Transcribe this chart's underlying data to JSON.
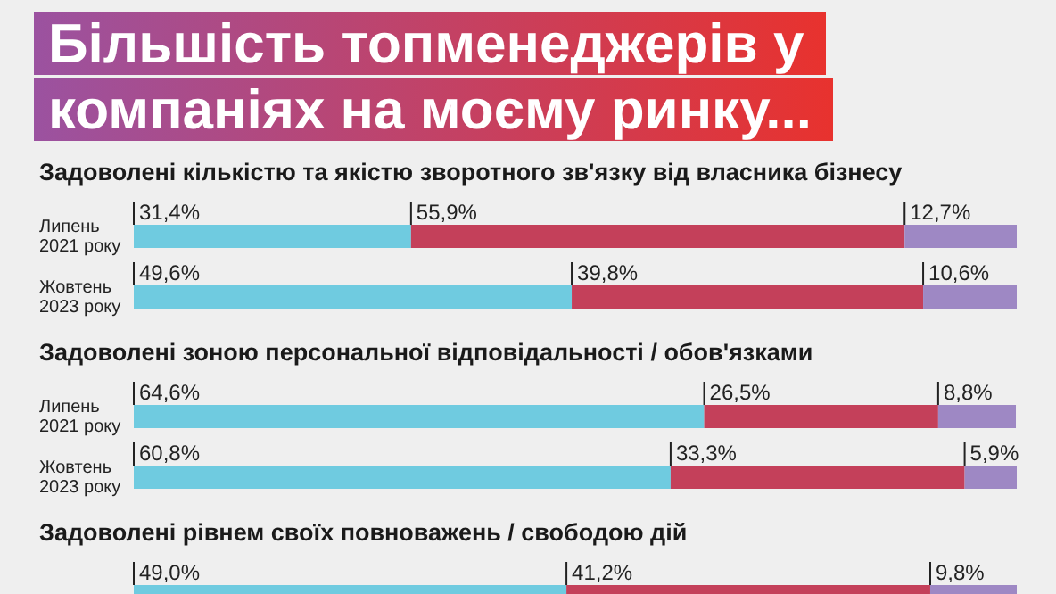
{
  "chart_data": [
    {
      "type": "bar",
      "title": "Більшість топменеджерів у компаніях на моєму ринку...",
      "subtitle": "Задоволені кількістю та якістю зворотного зв'язку від власника бізнесу",
      "orientation": "horizontal",
      "stacked": true,
      "categories": [
        "Липень 2021 року",
        "Жовтень 2023 року"
      ],
      "series": [
        {
          "color": "#6fcbe0",
          "values": [
            31.4,
            49.6
          ],
          "value_labels": [
            "31,4%",
            "49,6%"
          ]
        },
        {
          "color": "#c4405a",
          "values": [
            55.9,
            39.8
          ],
          "value_labels": [
            "55,9%",
            "39,8%"
          ]
        },
        {
          "color": "#9e88c4",
          "values": [
            12.7,
            10.6
          ],
          "value_labels": [
            "12,7%",
            "10,6%"
          ]
        }
      ]
    },
    {
      "type": "bar",
      "subtitle": "Задоволені зоною персональної відповідальності / обов'язками",
      "orientation": "horizontal",
      "stacked": true,
      "categories": [
        "Липень 2021 року",
        "Жовтень 2023 року"
      ],
      "series": [
        {
          "color": "#6fcbe0",
          "values": [
            64.6,
            60.8
          ],
          "value_labels": [
            "64,6%",
            "60,8%"
          ]
        },
        {
          "color": "#c4405a",
          "values": [
            26.5,
            33.3
          ],
          "value_labels": [
            "26,5%",
            "33,3%"
          ]
        },
        {
          "color": "#9e88c4",
          "values": [
            8.8,
            5.9
          ],
          "value_labels": [
            "8,8%",
            "5,9%"
          ]
        }
      ]
    },
    {
      "type": "bar",
      "subtitle": "Задоволені рівнем своїх повноважень / свободою дій",
      "orientation": "horizontal",
      "stacked": true,
      "categories": [
        null
      ],
      "series": [
        {
          "color": "#6fcbe0",
          "values": [
            49.0
          ],
          "value_labels": [
            "49,0%"
          ]
        },
        {
          "color": "#c4405a",
          "values": [
            41.2
          ],
          "value_labels": [
            "41,2%"
          ]
        },
        {
          "color": "#9e88c4",
          "values": [
            9.8
          ],
          "value_labels": [
            "9,8%"
          ]
        }
      ]
    }
  ]
}
